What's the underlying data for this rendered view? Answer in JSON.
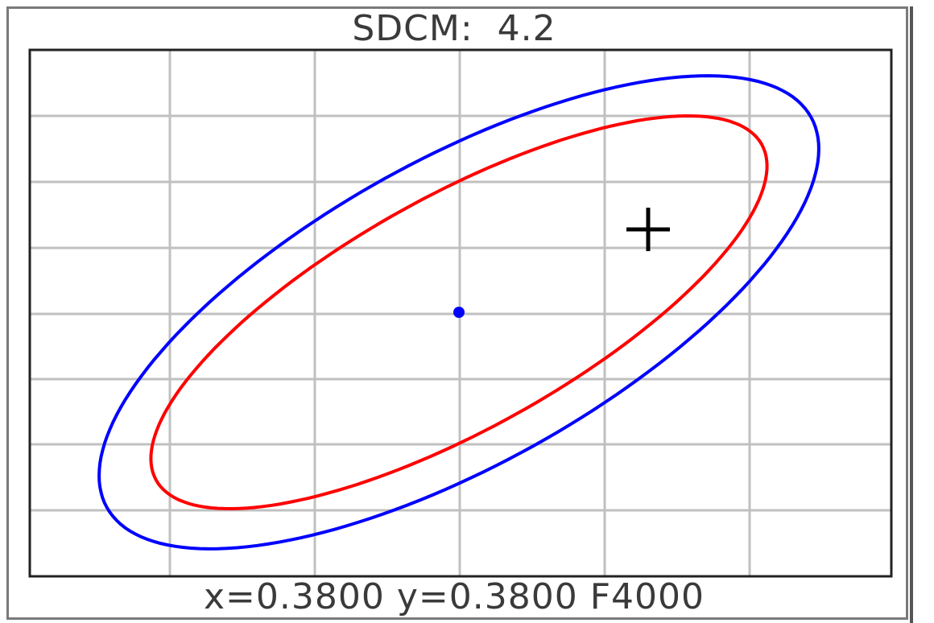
{
  "header": {
    "sdcm_label": "SDCM:",
    "sdcm_value": "4.2"
  },
  "footer": {
    "x_label": "x=",
    "x_value": "0.3800",
    "y_label": "y=",
    "y_value": "0.3800",
    "lamp_code": "F4000"
  },
  "chart_data": {
    "type": "scatter",
    "title": "SDCM: 4.2",
    "grid": true,
    "center": {
      "x": 0.38,
      "y": 0.38
    },
    "colors": {
      "outer_ellipse": "#0000ff",
      "inner_ellipse": "#ff0000",
      "center_dot": "#0000ff",
      "measured_marker": "#000000",
      "grid": "#c0c0c0",
      "frame": "#222222"
    },
    "series": [
      {
        "shape": "ellipse",
        "color": "#0000ff"
      },
      {
        "shape": "ellipse",
        "color": "#ff0000"
      },
      {
        "shape": "dot",
        "color": "#0000ff"
      },
      {
        "shape": "cross",
        "color": "#000000"
      }
    ]
  }
}
